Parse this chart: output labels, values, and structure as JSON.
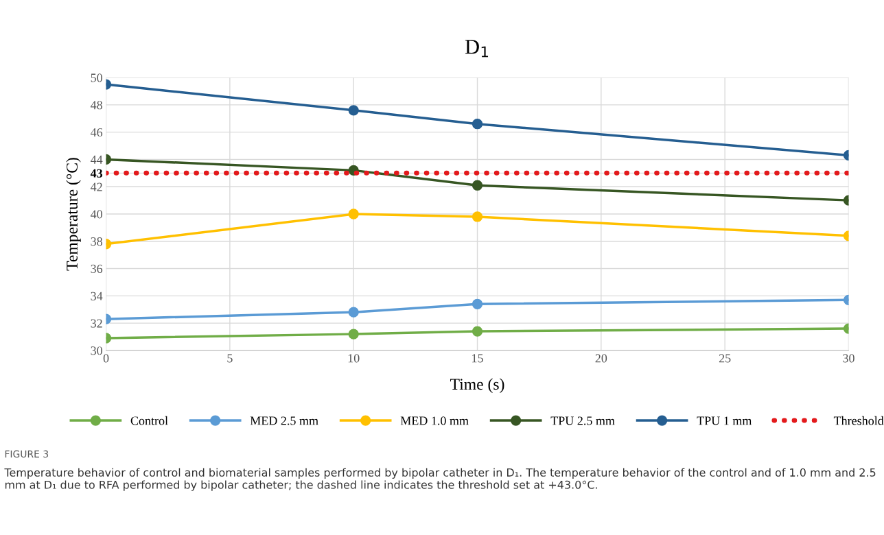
{
  "chart_data": {
    "type": "line",
    "title": "D$_{1}$",
    "xlabel": "Time (s)",
    "ylabel": "Temperature (°C)",
    "x": [
      0,
      10,
      15,
      30
    ],
    "series": [
      {
        "name": "Control",
        "color": "#70ad47",
        "values": [
          30.9,
          31.2,
          31.4,
          31.6
        ]
      },
      {
        "name": "MED 2.5 mm",
        "color": "#5b9bd5",
        "values": [
          32.3,
          32.8,
          33.4,
          33.7
        ]
      },
      {
        "name": "MED 1.0 mm",
        "color": "#ffc000",
        "values": [
          37.8,
          40.0,
          39.8,
          38.4
        ]
      },
      {
        "name": "TPU 2.5 mm",
        "color": "#375623",
        "values": [
          44.0,
          43.2,
          42.1,
          41.0
        ]
      },
      {
        "name": "TPU 1 mm",
        "color": "#255e91",
        "values": [
          49.5,
          47.6,
          46.6,
          44.3
        ]
      },
      {
        "name": "Threshold",
        "color": "#e31a1c",
        "x": [
          0,
          30
        ],
        "values": [
          43,
          43
        ],
        "line_style": "dotted",
        "marker": "none"
      }
    ],
    "marker": "circle",
    "line_style": "solid",
    "xlim": [
      0,
      30
    ],
    "xticks": [
      0,
      5,
      10,
      15,
      20,
      25,
      30
    ],
    "ylim": [
      30,
      50
    ],
    "yticks": [
      30,
      32,
      34,
      36,
      38,
      40,
      42,
      {
        "value": 43,
        "label": "43"
      },
      44,
      46,
      48,
      50
    ],
    "grid": true,
    "legend": "bottom",
    "annotations": [
      "FIGURE 3",
      "Temperature behavior of control and biomaterial samples performed by bipolar catheter in D₁. The temperature behavior of the control and of 1.0 mm and 2.5 mm at D₁ due to RFA performed by bipolar catheter; the dashed line indicates the threshold set at +43.0°C."
    ]
  }
}
